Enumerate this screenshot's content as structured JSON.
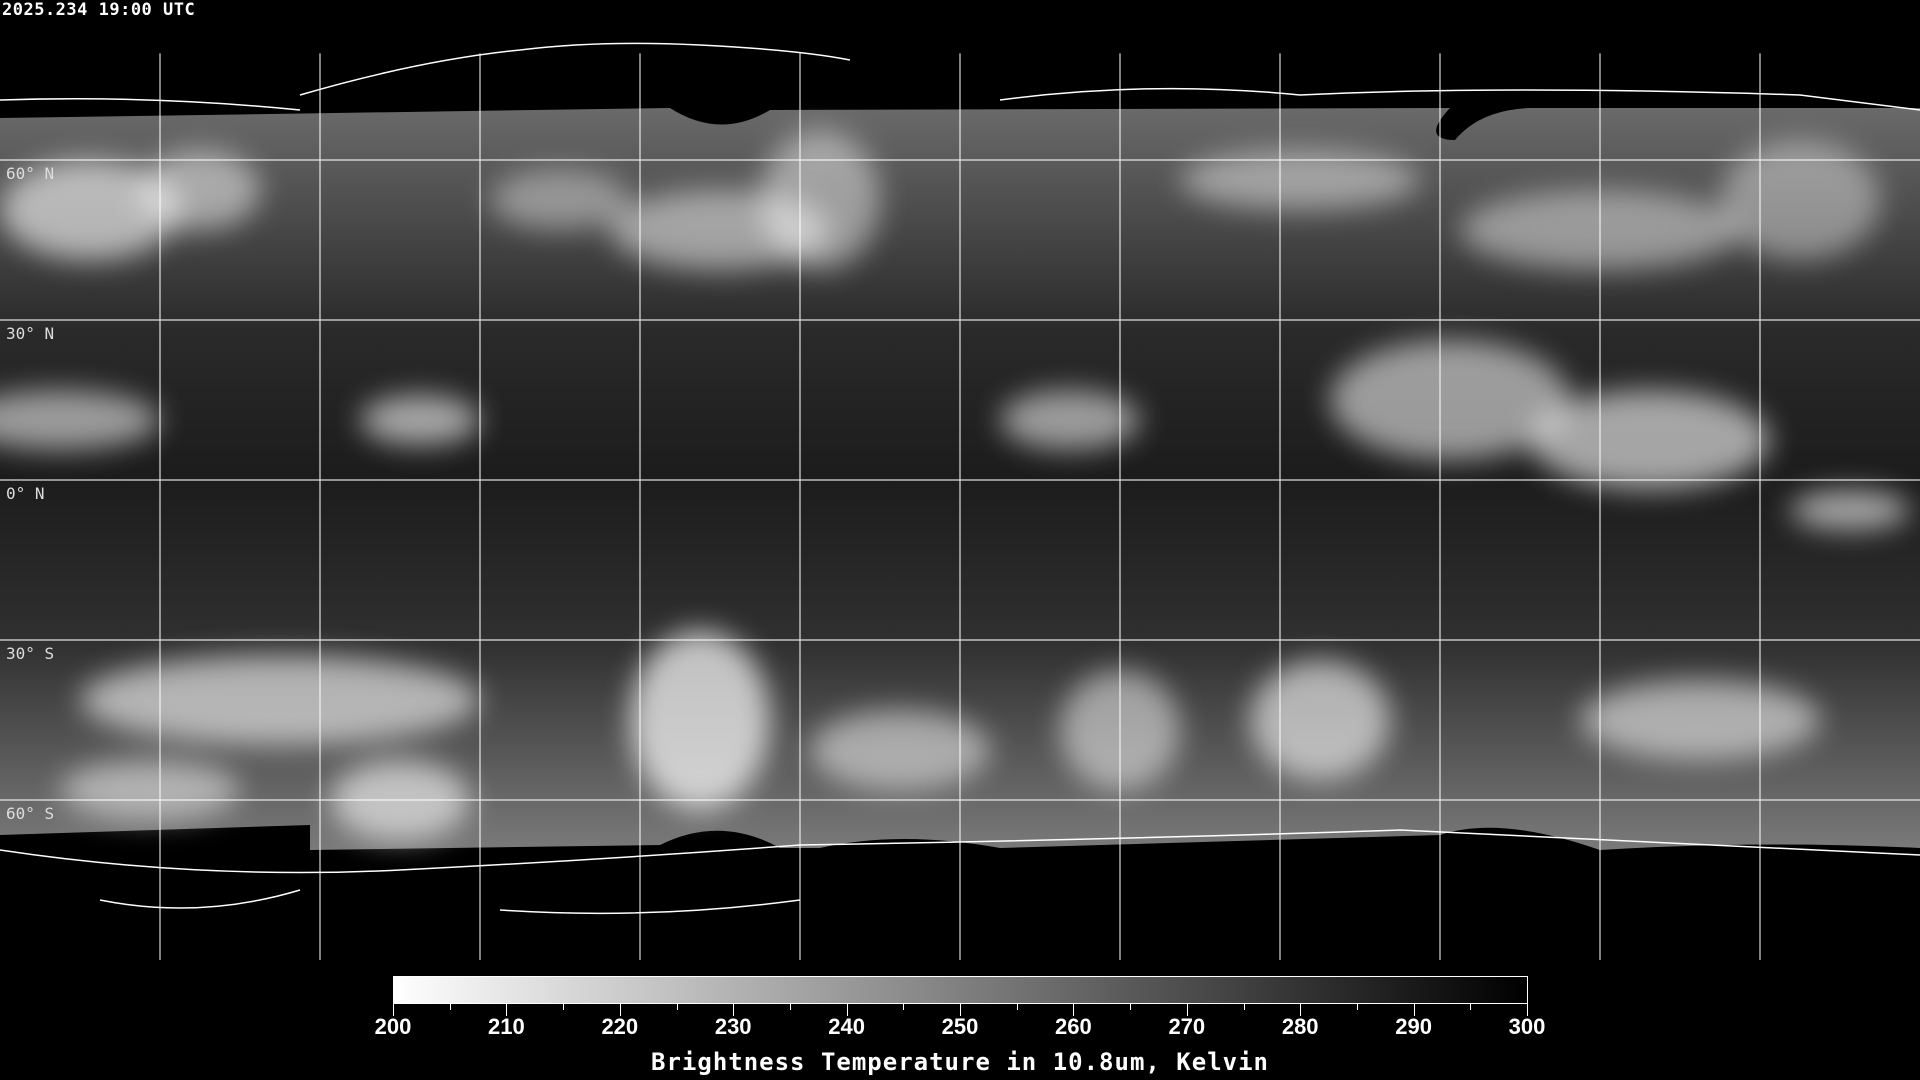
{
  "header": {
    "timestamp": "2025.234 19:00 UTC"
  },
  "map": {
    "projection": "equirectangular",
    "lat_labels": [
      "60° N",
      "30° N",
      "0° N",
      "30° S",
      "60° S"
    ],
    "lat_values": [
      60,
      30,
      0,
      -30,
      -60
    ],
    "lon_grid_step_deg": 30,
    "grid_color": "#ffffff",
    "coastline_color": "#ffffff"
  },
  "colorbar": {
    "min": 200,
    "max": 300,
    "tick_labels": [
      "200",
      "210",
      "220",
      "230",
      "240",
      "250",
      "260",
      "270",
      "280",
      "290",
      "300"
    ],
    "title": "Brightness Temperature in 10.8um, Kelvin",
    "color_low": "#ffffff",
    "color_high": "#000000"
  }
}
